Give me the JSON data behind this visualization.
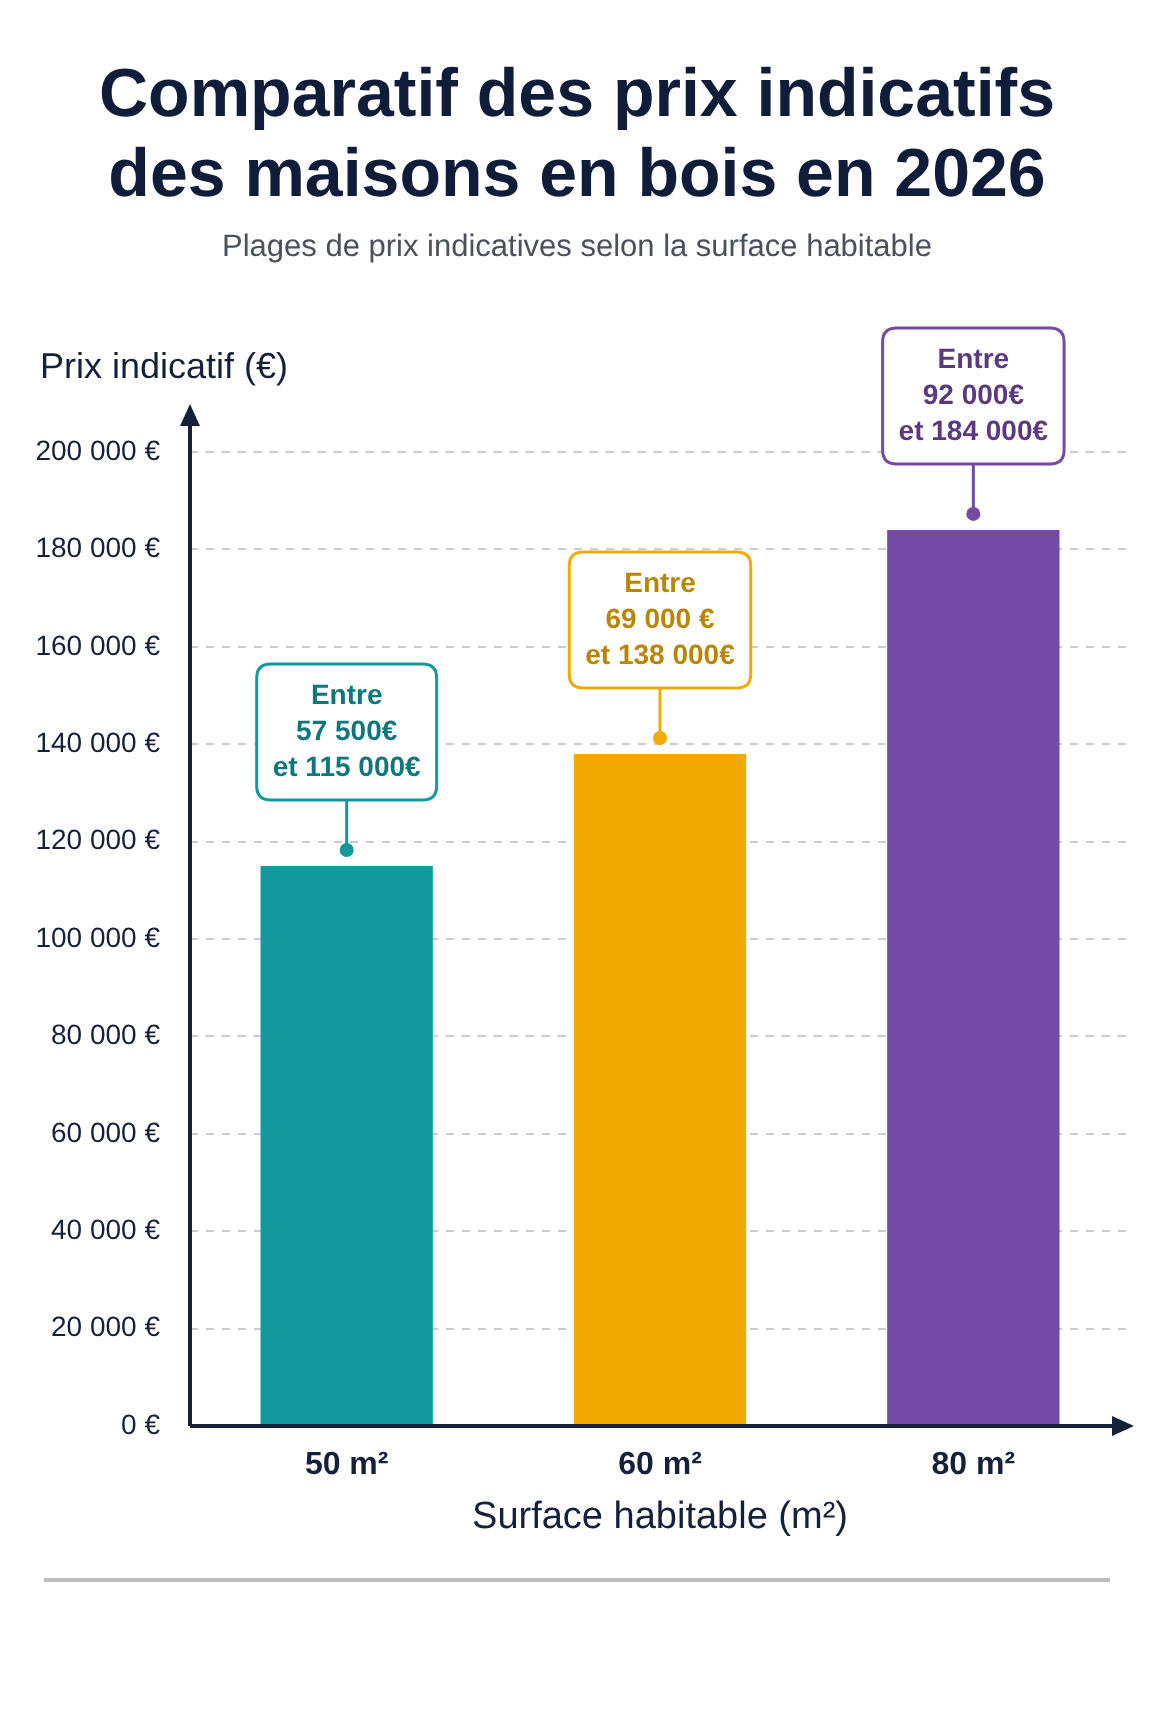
{
  "chart_data": {
    "type": "bar",
    "title": "Comparatif des prix indicatifs des maisons en bois en 2026",
    "subtitle": "Plages de prix indicatives selon la surface habitable",
    "ylabel": "Prix indicatif (€)",
    "xlabel": "Surface habitable (m²)",
    "categories": [
      "50 m²",
      "60 m²",
      "80 m²"
    ],
    "values": [
      115000,
      138000,
      184000
    ],
    "colors": [
      "#11999e",
      "#f1ab00",
      "#7549a6"
    ],
    "value_labels": [
      "Entre\n57 500€\net 115 000€",
      "Entre\n69 000 €\net 138 000€",
      "Entre\n92 000€\net 184 000€"
    ],
    "ylim": [
      0,
      200000
    ],
    "yticks": [
      {
        "value": 0,
        "label": "0 €"
      },
      {
        "value": 20000,
        "label": "20 000 €"
      },
      {
        "value": 40000,
        "label": "40 000 €"
      },
      {
        "value": 60000,
        "label": "60 000 €"
      },
      {
        "value": 80000,
        "label": "80 000 €"
      },
      {
        "value": 100000,
        "label": "100 000 €"
      },
      {
        "value": 120000,
        "label": "120 000 €"
      },
      {
        "value": 140000,
        "label": "140 000 €"
      },
      {
        "value": 160000,
        "label": "160 000 €"
      },
      {
        "value": 180000,
        "label": "180 000 €"
      },
      {
        "value": 200000,
        "label": "200 000 €"
      }
    ],
    "grid": "y"
  }
}
